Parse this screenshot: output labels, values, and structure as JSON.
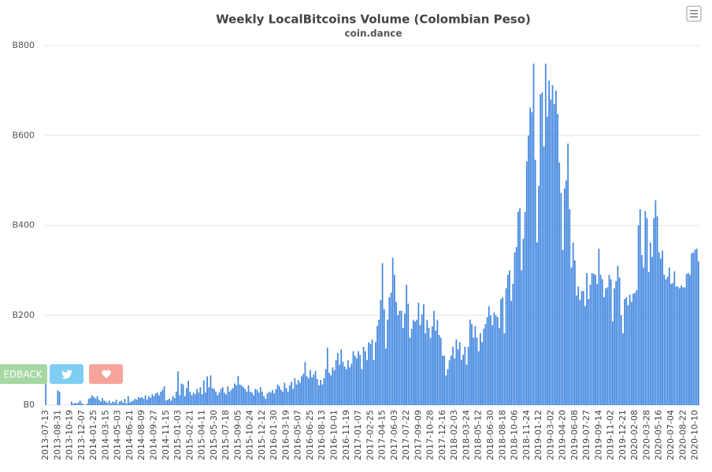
{
  "chart_data": {
    "type": "bar",
    "title": "Weekly LocalBitcoins Volume (Colombian Peso)",
    "subtitle": "coin.dance",
    "color": "#4287e0",
    "grid": true,
    "ylim": [
      0,
      800
    ],
    "yticks": [
      {
        "value": 0,
        "label": "B0"
      },
      {
        "value": 200,
        "label": "B200"
      },
      {
        "value": 400,
        "label": "B400"
      },
      {
        "value": 600,
        "label": "B600"
      },
      {
        "value": 800,
        "label": "B800"
      }
    ],
    "categories": [
      "2013-07-13",
      null,
      null,
      null,
      null,
      null,
      null,
      "2013-08-31",
      null,
      null,
      null,
      null,
      null,
      null,
      "2013-10-19",
      null,
      null,
      null,
      null,
      null,
      null,
      "2013-12-07",
      null,
      null,
      null,
      null,
      null,
      null,
      "2014-01-25",
      null,
      null,
      null,
      null,
      null,
      null,
      "2014-03-15",
      null,
      null,
      null,
      null,
      null,
      null,
      "2014-05-03",
      null,
      null,
      null,
      null,
      null,
      null,
      "2014-06-21",
      null,
      null,
      null,
      null,
      null,
      null,
      "2014-08-09",
      null,
      null,
      null,
      null,
      null,
      null,
      "2014-09-27",
      null,
      null,
      null,
      null,
      null,
      null,
      "2014-11-15",
      null,
      null,
      null,
      null,
      null,
      null,
      "2015-01-03",
      null,
      null,
      null,
      null,
      null,
      null,
      "2015-02-21",
      null,
      null,
      null,
      null,
      null,
      null,
      "2015-04-11",
      null,
      null,
      null,
      null,
      null,
      null,
      "2015-05-30",
      null,
      null,
      null,
      null,
      null,
      null,
      "2015-07-18",
      null,
      null,
      null,
      null,
      null,
      null,
      "2015-09-05",
      null,
      null,
      null,
      null,
      null,
      null,
      "2015-10-24",
      null,
      null,
      null,
      null,
      null,
      null,
      "2015-12-12",
      null,
      null,
      null,
      null,
      null,
      null,
      "2016-01-30",
      null,
      null,
      null,
      null,
      null,
      null,
      "2016-03-19",
      null,
      null,
      null,
      null,
      null,
      null,
      "2016-05-07",
      null,
      null,
      null,
      null,
      null,
      null,
      "2016-06-25",
      null,
      null,
      null,
      null,
      null,
      null,
      "2016-08-13",
      null,
      null,
      null,
      null,
      null,
      null,
      "2016-10-01",
      null,
      null,
      null,
      null,
      null,
      null,
      "2016-11-19",
      null,
      null,
      null,
      null,
      null,
      null,
      "2017-01-07",
      null,
      null,
      null,
      null,
      null,
      null,
      "2017-02-25",
      null,
      null,
      null,
      null,
      null,
      null,
      "2017-04-15",
      null,
      null,
      null,
      null,
      null,
      null,
      "2017-06-03",
      null,
      null,
      null,
      null,
      null,
      null,
      "2017-07-22",
      null,
      null,
      null,
      null,
      null,
      null,
      "2017-09-09",
      null,
      null,
      null,
      null,
      null,
      null,
      "2017-10-28",
      null,
      null,
      null,
      null,
      null,
      null,
      "2017-12-16",
      null,
      null,
      null,
      null,
      null,
      null,
      "2018-02-03",
      null,
      null,
      null,
      null,
      null,
      null,
      "2018-03-24",
      null,
      null,
      null,
      null,
      null,
      null,
      "2018-05-12",
      null,
      null,
      null,
      null,
      null,
      null,
      "2018-06-30",
      null,
      null,
      null,
      null,
      null,
      null,
      "2018-08-18",
      null,
      null,
      null,
      null,
      null,
      null,
      "2018-10-06",
      null,
      null,
      null,
      null,
      null,
      null,
      "2018-11-24",
      null,
      null,
      null,
      null,
      null,
      null,
      "2019-01-12",
      null,
      null,
      null,
      null,
      null,
      null,
      "2019-03-02",
      null,
      null,
      null,
      null,
      null,
      null,
      "2019-04-20",
      null,
      null,
      null,
      null,
      null,
      null,
      "2019-06-08",
      null,
      null,
      null,
      null,
      null,
      null,
      "2019-07-27",
      null,
      null,
      null,
      null,
      null,
      null,
      "2019-09-14",
      null,
      null,
      null,
      null,
      null,
      null,
      "2019-11-02",
      null,
      null,
      null,
      null,
      null,
      null,
      "2019-12-21",
      null,
      null,
      null,
      null,
      null,
      null,
      "2020-02-08",
      null,
      null,
      null,
      null,
      null,
      null,
      "2020-03-28",
      null,
      null,
      null,
      null,
      null,
      null,
      "2020-05-16",
      null,
      null,
      null,
      null,
      null,
      null,
      "2020-07-04",
      null,
      null,
      null,
      null,
      null,
      null,
      "2020-08-22",
      null,
      null,
      null,
      null,
      null,
      null,
      "2020-10-10",
      null,
      null
    ],
    "values": [
      56,
      0,
      0,
      0,
      0,
      0,
      0,
      33,
      30,
      0,
      0,
      0,
      0,
      0,
      0,
      8,
      3,
      5,
      4,
      6,
      10,
      4,
      2,
      0,
      3,
      14,
      16,
      22,
      18,
      15,
      20,
      12,
      8,
      16,
      10,
      8,
      5,
      10,
      4,
      8,
      6,
      12,
      3,
      8,
      10,
      5,
      14,
      4,
      20,
      6,
      8,
      10,
      14,
      12,
      18,
      16,
      18,
      14,
      22,
      12,
      20,
      16,
      24,
      20,
      26,
      28,
      22,
      30,
      34,
      42,
      10,
      12,
      14,
      10,
      20,
      16,
      30,
      75,
      22,
      48,
      46,
      20,
      38,
      54,
      30,
      22,
      28,
      24,
      36,
      28,
      40,
      24,
      55,
      28,
      64,
      40,
      66,
      38,
      36,
      30,
      22,
      28,
      36,
      40,
      28,
      24,
      42,
      30,
      34,
      38,
      48,
      44,
      65,
      46,
      44,
      40,
      36,
      30,
      44,
      30,
      28,
      22,
      36,
      34,
      28,
      40,
      30,
      20,
      14,
      26,
      30,
      28,
      34,
      26,
      36,
      46,
      42,
      34,
      30,
      50,
      38,
      30,
      44,
      52,
      36,
      60,
      46,
      56,
      50,
      64,
      70,
      96,
      64,
      60,
      78,
      62,
      68,
      76,
      58,
      44,
      56,
      46,
      60,
      80,
      128,
      72,
      66,
      84,
      78,
      100,
      116,
      90,
      124,
      96,
      86,
      80,
      100,
      84,
      92,
      120,
      110,
      104,
      120,
      112,
      80,
      130,
      120,
      100,
      140,
      136,
      146,
      100,
      140,
      176,
      190,
      234,
      316,
      214,
      126,
      190,
      240,
      250,
      328,
      290,
      230,
      200,
      210,
      210,
      172,
      204,
      268,
      226,
      150,
      170,
      190,
      186,
      190,
      228,
      178,
      202,
      224,
      160,
      190,
      172,
      150,
      175,
      210,
      166,
      190,
      156,
      150,
      110,
      110,
      66,
      80,
      100,
      110,
      130,
      104,
      146,
      124,
      140,
      100,
      112,
      130,
      90,
      130,
      190,
      180,
      150,
      176,
      150,
      120,
      160,
      140,
      170,
      180,
      196,
      220,
      200,
      178,
      206,
      200,
      196,
      172,
      236,
      240,
      160,
      260,
      290,
      300,
      232,
      270,
      340,
      352,
      430,
      438,
      300,
      370,
      430,
      542,
      600,
      662,
      652,
      760,
      546,
      362,
      488,
      692,
      696,
      576,
      760,
      642,
      722,
      680,
      712,
      670,
      700,
      648,
      540,
      472,
      345,
      482,
      500,
      582,
      436,
      306,
      362,
      322,
      244,
      264,
      234,
      254,
      254,
      220,
      294,
      236,
      268,
      294,
      292,
      290,
      270,
      348,
      290,
      280,
      240,
      260,
      262,
      290,
      280,
      186,
      260,
      276,
      310,
      284,
      200,
      160,
      236,
      240,
      222,
      246,
      230,
      248,
      250,
      256,
      400,
      436,
      334,
      306,
      432,
      416,
      296,
      362,
      330,
      416,
      456,
      420,
      340,
      326,
      344,
      290,
      280,
      286,
      306,
      270,
      272,
      298,
      264,
      264,
      260,
      266,
      262,
      262,
      292,
      294,
      290,
      338,
      340,
      346,
      348,
      320
    ]
  },
  "feedback": {
    "label": "EDBACK"
  }
}
